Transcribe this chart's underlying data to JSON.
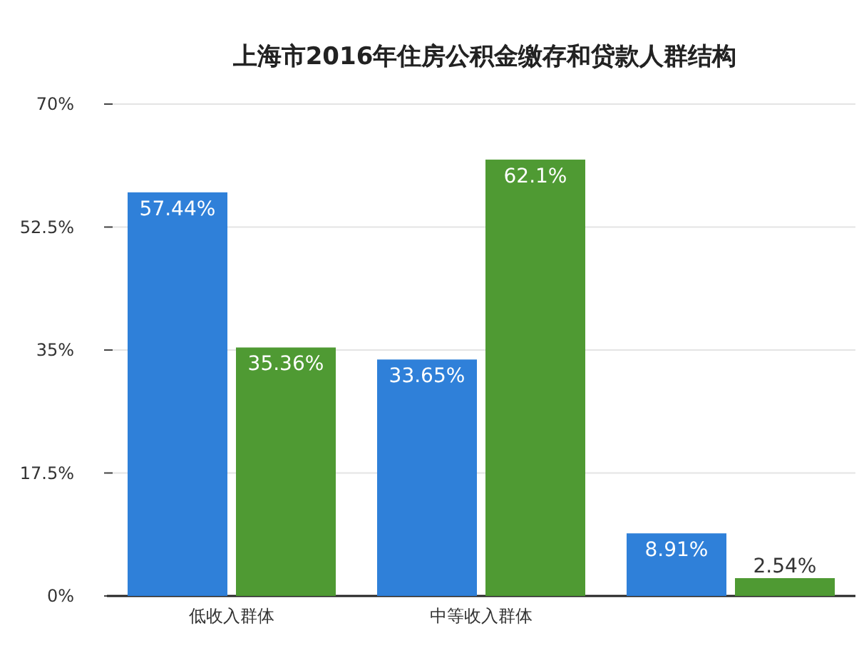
{
  "chart_data": {
    "type": "bar",
    "title": "上海市2016年住房公积金缴存和贷款人群结构",
    "categories": [
      "低收入群体",
      "中等收入群体",
      null
    ],
    "series": [
      {
        "color": "#2f80d9",
        "values": [
          57.44,
          33.65,
          8.91
        ],
        "value_labels": [
          "57.44%",
          "33.65%",
          "8.91%"
        ]
      },
      {
        "color": "#4f9a33",
        "values": [
          35.36,
          62.1,
          2.54
        ],
        "value_labels": [
          "35.36%",
          "62.1%",
          "2.54%"
        ]
      }
    ],
    "ylim": [
      0,
      70
    ],
    "yticks": [
      {
        "value": 0,
        "label": "0%"
      },
      {
        "value": 17.5,
        "label": "17.5%"
      },
      {
        "value": 35,
        "label": "35%"
      },
      {
        "value": 52.5,
        "label": "52.5%"
      },
      {
        "value": 70,
        "label": "70%"
      }
    ],
    "grid": "y"
  }
}
